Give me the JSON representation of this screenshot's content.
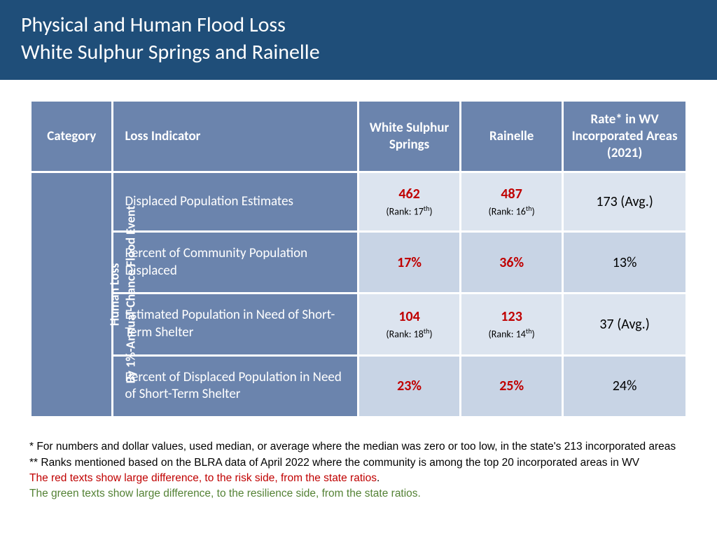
{
  "header": {
    "line1": "Physical and Human Flood Loss",
    "line2": "White Sulphur Springs and Rainelle"
  },
  "columns": {
    "category": "Category",
    "indicator": "Loss Indicator",
    "city1": "White Sulphur Springs",
    "city2": "Rainelle",
    "rate": "Rate* in WV Incorporated Areas (2021)"
  },
  "category_label": {
    "line1": "Human Loss",
    "line2": "By 1%-Annual-Chance Flood Event"
  },
  "rows": [
    {
      "indicator": "Displaced Population Estimates",
      "city1_val": "462",
      "city1_rank": "(Rank: 17",
      "city1_rank_sup": "th",
      "city1_rank_close": ")",
      "city2_val": "487",
      "city2_rank": "(Rank: 16",
      "city2_rank_sup": "th",
      "city2_rank_close": ")",
      "rate": "173 (Avg.)"
    },
    {
      "indicator": "Percent of Community Population Displaced",
      "city1_val": "17%",
      "city2_val": "36%",
      "rate": "13%"
    },
    {
      "indicator": "Estimated Population in Need of Short-Term Shelter",
      "city1_val": "104",
      "city1_rank": "(Rank: 18",
      "city1_rank_sup": "th",
      "city1_rank_close": ")",
      "city2_val": "123",
      "city2_rank": "(Rank: 14",
      "city2_rank_sup": "th",
      "city2_rank_close": ")",
      "rate": "37 (Avg.)"
    },
    {
      "indicator": "Percent of Displaced Population in Need of Short-Term Shelter",
      "city1_val": "23%",
      "city2_val": "25%",
      "rate": "24%"
    }
  ],
  "footnotes": {
    "l1": "* For numbers and dollar values, used median, or average where the median was zero or too low, in the state's 213 incorporated areas",
    "l2": "** Ranks mentioned based on the BLRA data of April 2022 where the community is among the top 20 incorporated areas in WV",
    "l3a": "The red texts show large difference, to the risk side, from the state ratios",
    "l3b": ".",
    "l4": "The green texts show large difference, to the resilience side, from the state ratios."
  },
  "colors": {
    "header_bg": "#1f4e79",
    "table_header_bg": "#6b84ad",
    "row_even_bg": "#dce4ef",
    "row_odd_bg": "#c8d4e5",
    "red": "#c00000",
    "green": "#548235"
  }
}
